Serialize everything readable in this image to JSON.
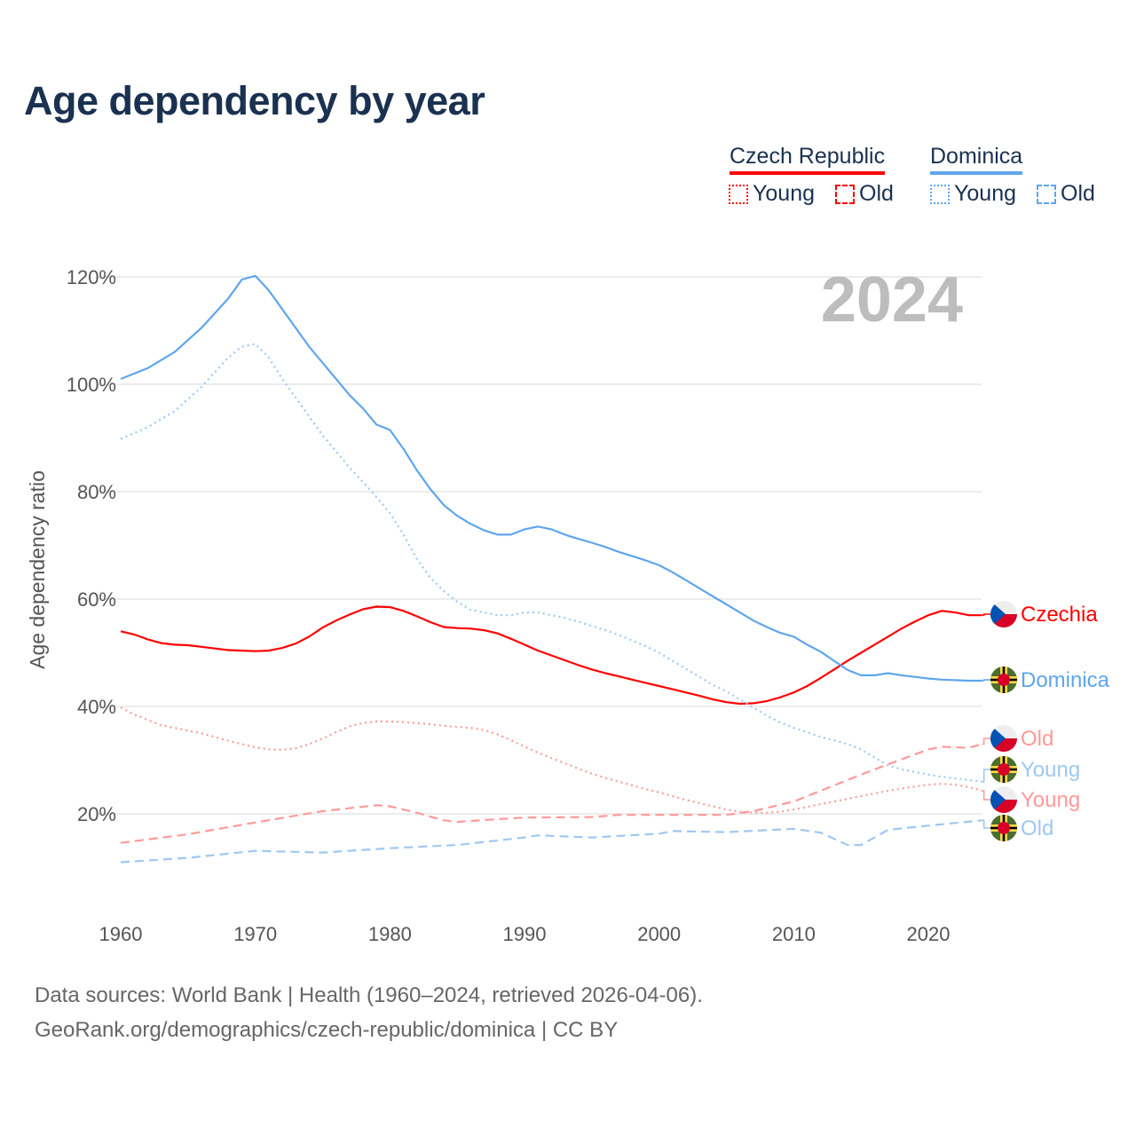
{
  "title": "Age dependency by year",
  "legend": {
    "countries": [
      {
        "name": "Czech Republic",
        "color": "#ff0000",
        "items": [
          "Young",
          "Old"
        ]
      },
      {
        "name": "Dominica",
        "color": "#5ea6ec",
        "items": [
          "Young",
          "Old"
        ]
      }
    ]
  },
  "year_watermark": "2024",
  "sources": [
    "Data sources: World Bank | Health (1960–2024, retrieved 2026-04-06).",
    "GeoRank.org/demographics/czech-republic/dominica | CC BY"
  ],
  "chart_data": {
    "type": "line",
    "title": "Age dependency by year",
    "xlabel": "",
    "ylabel": "Age dependency ratio",
    "xlim": [
      1960,
      2024
    ],
    "ylim": [
      0,
      125
    ],
    "xticks": [
      1960,
      1970,
      1980,
      1990,
      2000,
      2010,
      2020
    ],
    "yticks": [
      20,
      40,
      60,
      80,
      100,
      120
    ],
    "ytick_labels": [
      "20%",
      "40%",
      "60%",
      "80%",
      "100%",
      "120%"
    ],
    "grid": true,
    "series": [
      {
        "name": "Czechia",
        "end_label": "Czechia",
        "country": "cz",
        "style": "solid",
        "color": "#ff0000",
        "x": [
          1960,
          1961,
          1962,
          1963,
          1964,
          1965,
          1966,
          1967,
          1968,
          1969,
          1970,
          1971,
          1972,
          1973,
          1974,
          1975,
          1976,
          1977,
          1978,
          1979,
          1980,
          1981,
          1982,
          1983,
          1984,
          1985,
          1986,
          1987,
          1988,
          1989,
          1990,
          1991,
          1992,
          1993,
          1994,
          1995,
          1996,
          1997,
          1998,
          1999,
          2000,
          2001,
          2002,
          2003,
          2004,
          2005,
          2006,
          2007,
          2008,
          2009,
          2010,
          2011,
          2012,
          2013,
          2014,
          2015,
          2016,
          2017,
          2018,
          2019,
          2020,
          2021,
          2022,
          2023,
          2024
        ],
        "y": [
          54,
          53.4,
          52.5,
          51.8,
          51.5,
          51.4,
          51.1,
          50.8,
          50.5,
          50.4,
          50.3,
          50.4,
          50.9,
          51.7,
          53,
          54.7,
          56,
          57.1,
          58.1,
          58.6,
          58.5,
          57.8,
          56.8,
          55.7,
          54.8,
          54.6,
          54.5,
          54.2,
          53.6,
          52.6,
          51.5,
          50.4,
          49.5,
          48.6,
          47.7,
          46.9,
          46.2,
          45.6,
          45,
          44.4,
          43.8,
          43.2,
          42.6,
          42,
          41.3,
          40.8,
          40.5,
          40.6,
          41,
          41.7,
          42.6,
          43.8,
          45.3,
          46.9,
          48.5,
          50,
          51.5,
          53,
          54.5,
          55.8,
          57,
          57.8,
          57.5,
          57,
          57
        ]
      },
      {
        "name": "Dominica",
        "end_label": "Dominica",
        "country": "dm",
        "style": "solid",
        "color": "#5ea6ec",
        "x": [
          1960,
          1962,
          1964,
          1966,
          1968,
          1969,
          1970,
          1971,
          1972,
          1973,
          1974,
          1975,
          1976,
          1977,
          1978,
          1979,
          1980,
          1981,
          1982,
          1983,
          1984,
          1985,
          1986,
          1987,
          1988,
          1989,
          1990,
          1991,
          1992,
          1993,
          1994,
          1995,
          1996,
          1997,
          1998,
          1999,
          2000,
          2001,
          2002,
          2003,
          2004,
          2005,
          2006,
          2007,
          2008,
          2009,
          2010,
          2011,
          2012,
          2013,
          2014,
          2015,
          2016,
          2017,
          2018,
          2019,
          2020,
          2021,
          2022,
          2023,
          2024
        ],
        "y": [
          101,
          103,
          106,
          110.5,
          116,
          119.5,
          120.2,
          117.5,
          114,
          110.5,
          107,
          104,
          101,
          98,
          95.5,
          92.5,
          91.5,
          88,
          84,
          80.5,
          77.5,
          75.5,
          74,
          72.8,
          72,
          72,
          73,
          73.5,
          73,
          72,
          71.2,
          70.5,
          69.7,
          68.8,
          68,
          67.2,
          66.3,
          65,
          63.5,
          62,
          60.5,
          59,
          57.5,
          56,
          54.8,
          53.7,
          53,
          51.5,
          50.2,
          48.5,
          46.8,
          45.8,
          45.8,
          46.2,
          45.8,
          45.5,
          45.2,
          45,
          44.9,
          44.8,
          44.8
        ]
      },
      {
        "name": "Czechia Old",
        "end_label": "Old",
        "country": "cz",
        "style": "dashed",
        "color": "#ff9999",
        "x": [
          1960,
          1965,
          1970,
          1975,
          1979,
          1980,
          1982,
          1984,
          1985,
          1988,
          1990,
          1995,
          1997,
          2000,
          2005,
          2007,
          2010,
          2013,
          2015,
          2017,
          2020,
          2021,
          2023,
          2024
        ],
        "y": [
          14.6,
          16.2,
          18.4,
          20.5,
          21.6,
          21.4,
          20.2,
          18.8,
          18.5,
          19,
          19.3,
          19.4,
          19.8,
          19.8,
          19.8,
          20.5,
          22.3,
          25.3,
          27.3,
          29.2,
          32,
          32.5,
          32.3,
          33
        ]
      },
      {
        "name": "Dominica Young",
        "end_label": "Young",
        "country": "dm",
        "style": "dotted",
        "color": "#9ec8f2",
        "x": [
          1960,
          1962,
          1964,
          1966,
          1968,
          1969,
          1970,
          1971,
          1972,
          1973,
          1974,
          1975,
          1976,
          1977,
          1978,
          1979,
          1980,
          1981,
          1982,
          1983,
          1984,
          1985,
          1986,
          1987,
          1988,
          1989,
          1990,
          1991,
          1992,
          1993,
          1994,
          1995,
          1996,
          1997,
          1998,
          1999,
          2000,
          2001,
          2002,
          2003,
          2004,
          2005,
          2006,
          2007,
          2008,
          2009,
          2010,
          2011,
          2012,
          2013,
          2014,
          2015,
          2016,
          2017,
          2018,
          2019,
          2020,
          2021,
          2022,
          2023,
          2024
        ],
        "y": [
          89.8,
          92,
          95,
          99.5,
          105,
          107,
          107.5,
          105,
          101,
          97.5,
          94,
          90.5,
          87.5,
          84.5,
          81.8,
          79,
          76,
          72,
          67.5,
          64,
          61.5,
          59.5,
          58,
          57.5,
          57,
          57,
          57.5,
          57.5,
          57,
          56.5,
          55.8,
          55,
          54.2,
          53.3,
          52.3,
          51.2,
          50,
          48.5,
          47,
          45.5,
          44,
          42.8,
          41.3,
          39.8,
          38.3,
          37,
          36,
          35.2,
          34.3,
          33.7,
          33,
          32,
          30.5,
          29,
          28.3,
          27.8,
          27.3,
          26.9,
          26.6,
          26.3,
          26
        ]
      },
      {
        "name": "Czechia Young",
        "end_label": "Young",
        "country": "cz",
        "style": "dotted",
        "color": "#ff9999",
        "x": [
          1960,
          1961,
          1962,
          1963,
          1964,
          1965,
          1966,
          1967,
          1968,
          1969,
          1970,
          1971,
          1972,
          1973,
          1974,
          1975,
          1976,
          1977,
          1978,
          1979,
          1980,
          1981,
          1982,
          1983,
          1984,
          1985,
          1986,
          1987,
          1988,
          1989,
          1990,
          1991,
          1992,
          1993,
          1994,
          1995,
          1996,
          1997,
          1998,
          1999,
          2000,
          2001,
          2002,
          2003,
          2004,
          2005,
          2006,
          2007,
          2008,
          2009,
          2010,
          2011,
          2012,
          2013,
          2014,
          2015,
          2016,
          2017,
          2018,
          2019,
          2020,
          2021,
          2022,
          2023,
          2024
        ],
        "y": [
          39.8,
          38.5,
          37.5,
          36.5,
          36,
          35.5,
          35,
          34.3,
          33.6,
          33,
          32.4,
          32,
          31.9,
          32.2,
          33,
          34,
          35.2,
          36.3,
          36.9,
          37.2,
          37.2,
          37.1,
          36.9,
          36.7,
          36.4,
          36.2,
          36,
          35.6,
          34.8,
          33.7,
          32.5,
          31.4,
          30.4,
          29.4,
          28.4,
          27.5,
          26.7,
          26,
          25.3,
          24.6,
          24,
          23.3,
          22.6,
          22,
          21.4,
          20.8,
          20.4,
          20.2,
          20.2,
          20.4,
          20.8,
          21.3,
          21.8,
          22.3,
          22.8,
          23.3,
          23.8,
          24.3,
          24.7,
          25.1,
          25.4,
          25.6,
          25.4,
          25,
          24.3
        ]
      },
      {
        "name": "Dominica Old",
        "end_label": "Old",
        "country": "dm",
        "style": "dashed",
        "color": "#9ec8f2",
        "x": [
          1960,
          1965,
          1970,
          1975,
          1980,
          1985,
          1990,
          1991,
          1995,
          2000,
          2001,
          2005,
          2010,
          2012,
          2014,
          2015,
          2017,
          2020,
          2024
        ],
        "y": [
          11,
          11.8,
          13.1,
          12.8,
          13.6,
          14.2,
          15.6,
          16,
          15.6,
          16.3,
          16.8,
          16.6,
          17.2,
          16.5,
          14.2,
          14.2,
          17,
          17.8,
          18.8
        ]
      }
    ]
  }
}
